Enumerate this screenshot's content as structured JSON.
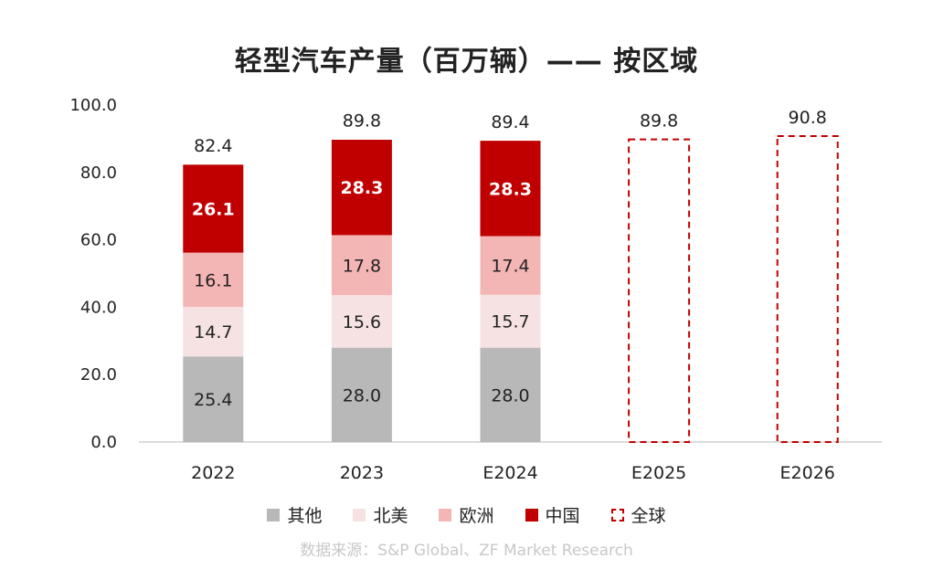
{
  "chart_data": {
    "type": "bar",
    "title": "轻型汽车产量（百万辆）—— 按区域",
    "categories": [
      "2022",
      "2023",
      "E2024",
      "E2025",
      "E2026"
    ],
    "series": [
      {
        "name": "其他",
        "color": "#b8b8b8",
        "label_color": "#222222",
        "values": [
          25.4,
          28.0,
          28.0,
          null,
          null
        ]
      },
      {
        "name": "北美",
        "color": "#f6e2e2",
        "label_color": "#222222",
        "values": [
          14.7,
          15.6,
          15.7,
          null,
          null
        ]
      },
      {
        "name": "欧洲",
        "color": "#f4b5b5",
        "label_color": "#222222",
        "values": [
          16.1,
          17.8,
          17.4,
          null,
          null
        ]
      },
      {
        "name": "中国",
        "color": "#c00000",
        "label_color": "#ffffff",
        "values": [
          26.1,
          28.3,
          28.3,
          null,
          null
        ]
      }
    ],
    "total_series": {
      "name": "全球",
      "color": "#c00000",
      "style": "dashed-outline",
      "values": [
        82.4,
        89.8,
        89.4,
        89.8,
        90.8
      ]
    },
    "total_labels": [
      "82.4",
      "89.8",
      "89.4",
      "89.8",
      "90.8"
    ],
    "yticks": [
      "0.0",
      "20.0",
      "40.0",
      "60.0",
      "80.0",
      "100.0"
    ],
    "ylim": [
      0,
      100
    ],
    "grid": false,
    "legend_position": "bottom"
  },
  "legend": [
    {
      "label": "其他",
      "color": "#b8b8b8",
      "style": "solid"
    },
    {
      "label": "北美",
      "color": "#f6e2e2",
      "style": "solid"
    },
    {
      "label": "欧洲",
      "color": "#f4b5b5",
      "style": "solid"
    },
    {
      "label": "中国",
      "color": "#c00000",
      "style": "solid"
    },
    {
      "label": "全球",
      "color": "#c00000",
      "style": "dashed"
    }
  ],
  "source": "数据来源：S&P Global、ZF Market Research"
}
